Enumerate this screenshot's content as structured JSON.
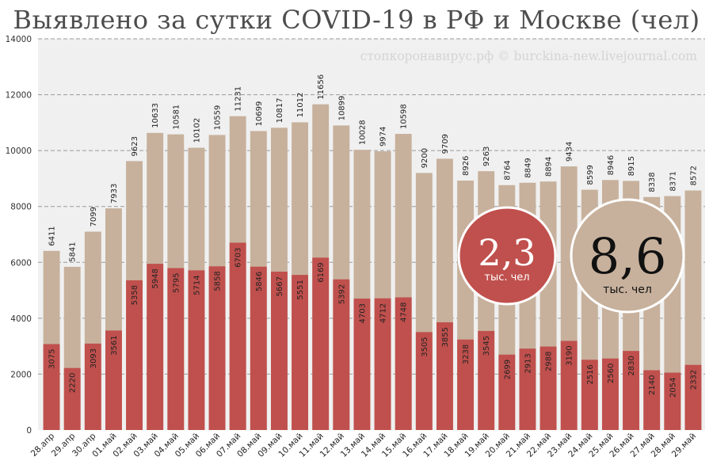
{
  "title": "Выявлено за сутки COVID-19 в РФ и Москве (чел)",
  "watermark": "стопкоронавирус.рф © burckina-new.livejournal.com",
  "colors": {
    "russia": "#c7b19c",
    "moscow": "#c0504d",
    "plot_bg": "#f0f0f0",
    "russia_bubble": "#c7b19c",
    "moscow_bubble": "#c0504d"
  },
  "bubbles": {
    "moscow": {
      "value": "2,3",
      "unit": "тыс. чел"
    },
    "russia": {
      "value": "8,6",
      "unit": "тыс. чел"
    }
  },
  "chart_data": {
    "type": "bar",
    "title": "Выявлено за сутки COVID-19 в РФ и Москве (чел)",
    "xlabel": "",
    "ylabel": "",
    "ylim": [
      0,
      14000
    ],
    "yticks": [
      0,
      2000,
      4000,
      6000,
      8000,
      10000,
      12000,
      14000
    ],
    "grid": true,
    "categories": [
      "28.апр",
      "29.апр",
      "30.апр",
      "01.май",
      "02.май",
      "03.май",
      "04.май",
      "05.май",
      "06.май",
      "07.май",
      "08.май",
      "09.май",
      "10.май",
      "11.май",
      "12.май",
      "13.май",
      "14.май",
      "15.май",
      "16.май",
      "17.май",
      "18.май",
      "19.май",
      "20.май",
      "21.май",
      "22.май",
      "23.май",
      "24.май",
      "25.май",
      "26.май",
      "27.май",
      "28.май",
      "29.май"
    ],
    "series": [
      {
        "values": [
          6411,
          5841,
          7099,
          7933,
          9623,
          10633,
          10581,
          10102,
          10559,
          11231,
          10699,
          10817,
          11012,
          11656,
          10899,
          10028,
          9974,
          10598,
          9200,
          9709,
          8926,
          9263,
          8764,
          8849,
          8894,
          9434,
          8599,
          8946,
          8915,
          8338,
          8371,
          8572
        ]
      },
      {
        "values": [
          3075,
          2220,
          3093,
          3561,
          5358,
          5948,
          5795,
          5714,
          5858,
          6703,
          5846,
          5667,
          5551,
          6169,
          5392,
          4703,
          4712,
          4748,
          3505,
          3855,
          3238,
          3545,
          2699,
          2913,
          2988,
          3190,
          2516,
          2560,
          2830,
          2140,
          2054,
          2332
        ]
      }
    ]
  }
}
